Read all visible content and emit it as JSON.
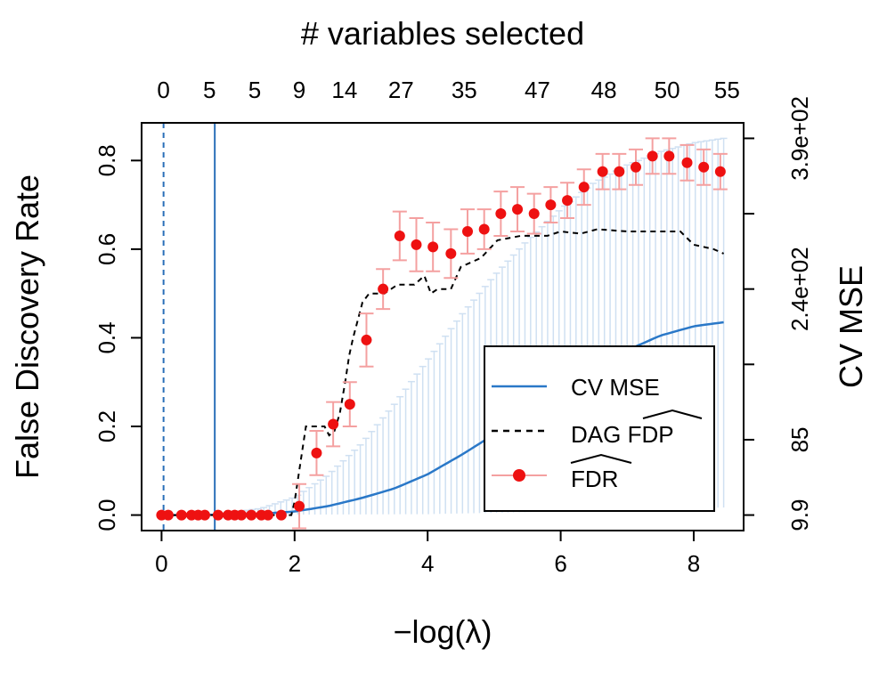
{
  "chart_data": {
    "type": "scatter",
    "title": "# variables selected",
    "xlabel": "−log(λ)",
    "ylabel": "False Discovery Rate",
    "y2label": "CV MSE",
    "xlim": [
      -0.3,
      8.75
    ],
    "ylim": [
      -0.035,
      0.885
    ],
    "x_ticks": [
      "0",
      "2",
      "4",
      "6",
      "8"
    ],
    "y_ticks": [
      "0.0",
      "0.2",
      "0.4",
      "0.6",
      "0.8"
    ],
    "top_ticks": [
      {
        "x": 0.03,
        "label": "0"
      },
      {
        "x": 0.72,
        "label": "5"
      },
      {
        "x": 1.4,
        "label": "5"
      },
      {
        "x": 2.07,
        "label": "9"
      },
      {
        "x": 2.75,
        "label": "14"
      },
      {
        "x": 3.6,
        "label": "27"
      },
      {
        "x": 4.55,
        "label": "35"
      },
      {
        "x": 5.65,
        "label": "47"
      },
      {
        "x": 6.65,
        "label": "48"
      },
      {
        "x": 7.6,
        "label": "50"
      },
      {
        "x": 8.5,
        "label": "55"
      }
    ],
    "right_ticks": [
      {
        "y": 0.0,
        "label": "9.9"
      },
      {
        "y": 0.17,
        "label": "85"
      },
      {
        "y": 0.34,
        "label": ""
      },
      {
        "y": 0.51,
        "label": "2.4e+02"
      },
      {
        "y": 0.68,
        "label": ""
      },
      {
        "y": 0.85,
        "label": "3.9e+02"
      }
    ],
    "vlines": [
      {
        "x": 0.03,
        "style": "dashed",
        "color": "#2a6fb8"
      },
      {
        "x": 0.8,
        "style": "solid",
        "color": "#2a6fb8"
      }
    ],
    "legend": {
      "position": "bottom-right",
      "entries": [
        "CV MSE",
        "DAG ",
        "FDP",
        ""
      ],
      "hat_labels": [
        "FDP",
        "FDR"
      ]
    },
    "colors": {
      "fdr_points": "#ee1111",
      "fdr_errorbars": "#f4a0a0",
      "dag_fdp": "#000000",
      "cv_mse": "#2a78c8",
      "cv_band": "#cfe0f2"
    },
    "series": [
      {
        "name": "FDR",
        "kind": "points_with_errorbars",
        "points": [
          {
            "x": 0.0,
            "y": 0.0,
            "lo": 0.0,
            "hi": 0.0
          },
          {
            "x": 0.1,
            "y": 0.0,
            "lo": 0.0,
            "hi": 0.0
          },
          {
            "x": 0.3,
            "y": 0.0,
            "lo": 0.0,
            "hi": 0.0
          },
          {
            "x": 0.45,
            "y": 0.0,
            "lo": 0.0,
            "hi": 0.0
          },
          {
            "x": 0.55,
            "y": 0.0,
            "lo": 0.0,
            "hi": 0.0
          },
          {
            "x": 0.65,
            "y": 0.0,
            "lo": 0.0,
            "hi": 0.0
          },
          {
            "x": 0.85,
            "y": 0.0,
            "lo": 0.0,
            "hi": 0.0
          },
          {
            "x": 1.0,
            "y": 0.0,
            "lo": 0.0,
            "hi": 0.0
          },
          {
            "x": 1.1,
            "y": 0.0,
            "lo": 0.0,
            "hi": 0.0
          },
          {
            "x": 1.2,
            "y": 0.0,
            "lo": 0.0,
            "hi": 0.0
          },
          {
            "x": 1.35,
            "y": 0.0,
            "lo": 0.0,
            "hi": 0.0
          },
          {
            "x": 1.5,
            "y": 0.0,
            "lo": 0.0,
            "hi": 0.0
          },
          {
            "x": 1.6,
            "y": 0.0,
            "lo": 0.0,
            "hi": 0.0
          },
          {
            "x": 1.8,
            "y": 0.0,
            "lo": 0.0,
            "hi": 0.0
          },
          {
            "x": 2.07,
            "y": 0.02,
            "lo": -0.03,
            "hi": 0.07
          },
          {
            "x": 2.33,
            "y": 0.14,
            "lo": 0.09,
            "hi": 0.19
          },
          {
            "x": 2.58,
            "y": 0.205,
            "lo": 0.155,
            "hi": 0.255
          },
          {
            "x": 2.83,
            "y": 0.25,
            "lo": 0.2,
            "hi": 0.3
          },
          {
            "x": 3.08,
            "y": 0.395,
            "lo": 0.335,
            "hi": 0.455
          },
          {
            "x": 3.33,
            "y": 0.51,
            "lo": 0.465,
            "hi": 0.555
          },
          {
            "x": 3.58,
            "y": 0.63,
            "lo": 0.575,
            "hi": 0.685
          },
          {
            "x": 3.83,
            "y": 0.61,
            "lo": 0.55,
            "hi": 0.67
          },
          {
            "x": 4.08,
            "y": 0.605,
            "lo": 0.55,
            "hi": 0.66
          },
          {
            "x": 4.35,
            "y": 0.59,
            "lo": 0.535,
            "hi": 0.645
          },
          {
            "x": 4.6,
            "y": 0.64,
            "lo": 0.59,
            "hi": 0.69
          },
          {
            "x": 4.85,
            "y": 0.645,
            "lo": 0.6,
            "hi": 0.69
          },
          {
            "x": 5.1,
            "y": 0.68,
            "lo": 0.63,
            "hi": 0.73
          },
          {
            "x": 5.35,
            "y": 0.69,
            "lo": 0.64,
            "hi": 0.74
          },
          {
            "x": 5.6,
            "y": 0.68,
            "lo": 0.635,
            "hi": 0.725
          },
          {
            "x": 5.85,
            "y": 0.7,
            "lo": 0.66,
            "hi": 0.74
          },
          {
            "x": 6.1,
            "y": 0.71,
            "lo": 0.67,
            "hi": 0.75
          },
          {
            "x": 6.35,
            "y": 0.74,
            "lo": 0.7,
            "hi": 0.78
          },
          {
            "x": 6.63,
            "y": 0.775,
            "lo": 0.735,
            "hi": 0.815
          },
          {
            "x": 6.88,
            "y": 0.775,
            "lo": 0.735,
            "hi": 0.815
          },
          {
            "x": 7.13,
            "y": 0.785,
            "lo": 0.745,
            "hi": 0.825
          },
          {
            "x": 7.38,
            "y": 0.81,
            "lo": 0.77,
            "hi": 0.85
          },
          {
            "x": 7.63,
            "y": 0.81,
            "lo": 0.77,
            "hi": 0.85
          },
          {
            "x": 7.9,
            "y": 0.795,
            "lo": 0.755,
            "hi": 0.835
          },
          {
            "x": 8.15,
            "y": 0.785,
            "lo": 0.745,
            "hi": 0.825
          },
          {
            "x": 8.4,
            "y": 0.775,
            "lo": 0.735,
            "hi": 0.815
          }
        ]
      },
      {
        "name": "DAG FDP",
        "kind": "dashed_line",
        "points": [
          [
            0.0,
            0.0
          ],
          [
            1.95,
            0.0
          ],
          [
            2.0,
            0.03
          ],
          [
            2.07,
            0.1
          ],
          [
            2.17,
            0.2
          ],
          [
            2.45,
            0.2
          ],
          [
            2.52,
            0.18
          ],
          [
            2.6,
            0.19
          ],
          [
            2.68,
            0.23
          ],
          [
            2.76,
            0.3
          ],
          [
            2.82,
            0.36
          ],
          [
            2.88,
            0.4
          ],
          [
            2.95,
            0.44
          ],
          [
            3.02,
            0.48
          ],
          [
            3.12,
            0.5
          ],
          [
            3.35,
            0.5
          ],
          [
            3.55,
            0.52
          ],
          [
            3.8,
            0.52
          ],
          [
            3.95,
            0.54
          ],
          [
            4.05,
            0.5
          ],
          [
            4.15,
            0.51
          ],
          [
            4.35,
            0.51
          ],
          [
            4.5,
            0.56
          ],
          [
            4.8,
            0.58
          ],
          [
            5.05,
            0.62
          ],
          [
            5.4,
            0.63
          ],
          [
            5.8,
            0.63
          ],
          [
            6.0,
            0.64
          ],
          [
            6.3,
            0.635
          ],
          [
            6.55,
            0.645
          ],
          [
            7.0,
            0.64
          ],
          [
            7.5,
            0.64
          ],
          [
            7.8,
            0.64
          ],
          [
            8.0,
            0.61
          ],
          [
            8.3,
            0.6
          ],
          [
            8.45,
            0.59
          ]
        ]
      },
      {
        "name": "CV MSE",
        "kind": "line_with_band",
        "x_start": 0.0,
        "x_end": 8.45,
        "points": [
          [
            0.0,
            0.0
          ],
          [
            0.5,
            0.0
          ],
          [
            1.0,
            0.001
          ],
          [
            1.5,
            0.003
          ],
          [
            2.0,
            0.008
          ],
          [
            2.5,
            0.02
          ],
          [
            3.0,
            0.038
          ],
          [
            3.5,
            0.06
          ],
          [
            4.0,
            0.092
          ],
          [
            4.5,
            0.135
          ],
          [
            5.0,
            0.182
          ],
          [
            5.5,
            0.232
          ],
          [
            6.0,
            0.283
          ],
          [
            6.5,
            0.33
          ],
          [
            7.0,
            0.372
          ],
          [
            7.5,
            0.405
          ],
          [
            8.0,
            0.426
          ],
          [
            8.45,
            0.435
          ]
        ],
        "band_upper": [
          [
            0.0,
            0.0
          ],
          [
            0.5,
            0.002
          ],
          [
            1.0,
            0.005
          ],
          [
            1.5,
            0.015
          ],
          [
            2.0,
            0.04
          ],
          [
            2.5,
            0.09
          ],
          [
            3.0,
            0.16
          ],
          [
            3.5,
            0.25
          ],
          [
            4.0,
            0.35
          ],
          [
            4.5,
            0.45
          ],
          [
            5.0,
            0.54
          ],
          [
            5.5,
            0.62
          ],
          [
            6.0,
            0.69
          ],
          [
            6.5,
            0.75
          ],
          [
            7.0,
            0.79
          ],
          [
            7.5,
            0.82
          ],
          [
            8.0,
            0.84
          ],
          [
            8.45,
            0.85
          ]
        ],
        "band_lower": [
          [
            0.0,
            0.0
          ],
          [
            4.0,
            0.002
          ],
          [
            6.0,
            0.008
          ],
          [
            7.0,
            0.012
          ],
          [
            8.0,
            0.015
          ],
          [
            8.45,
            0.017
          ]
        ]
      }
    ]
  }
}
